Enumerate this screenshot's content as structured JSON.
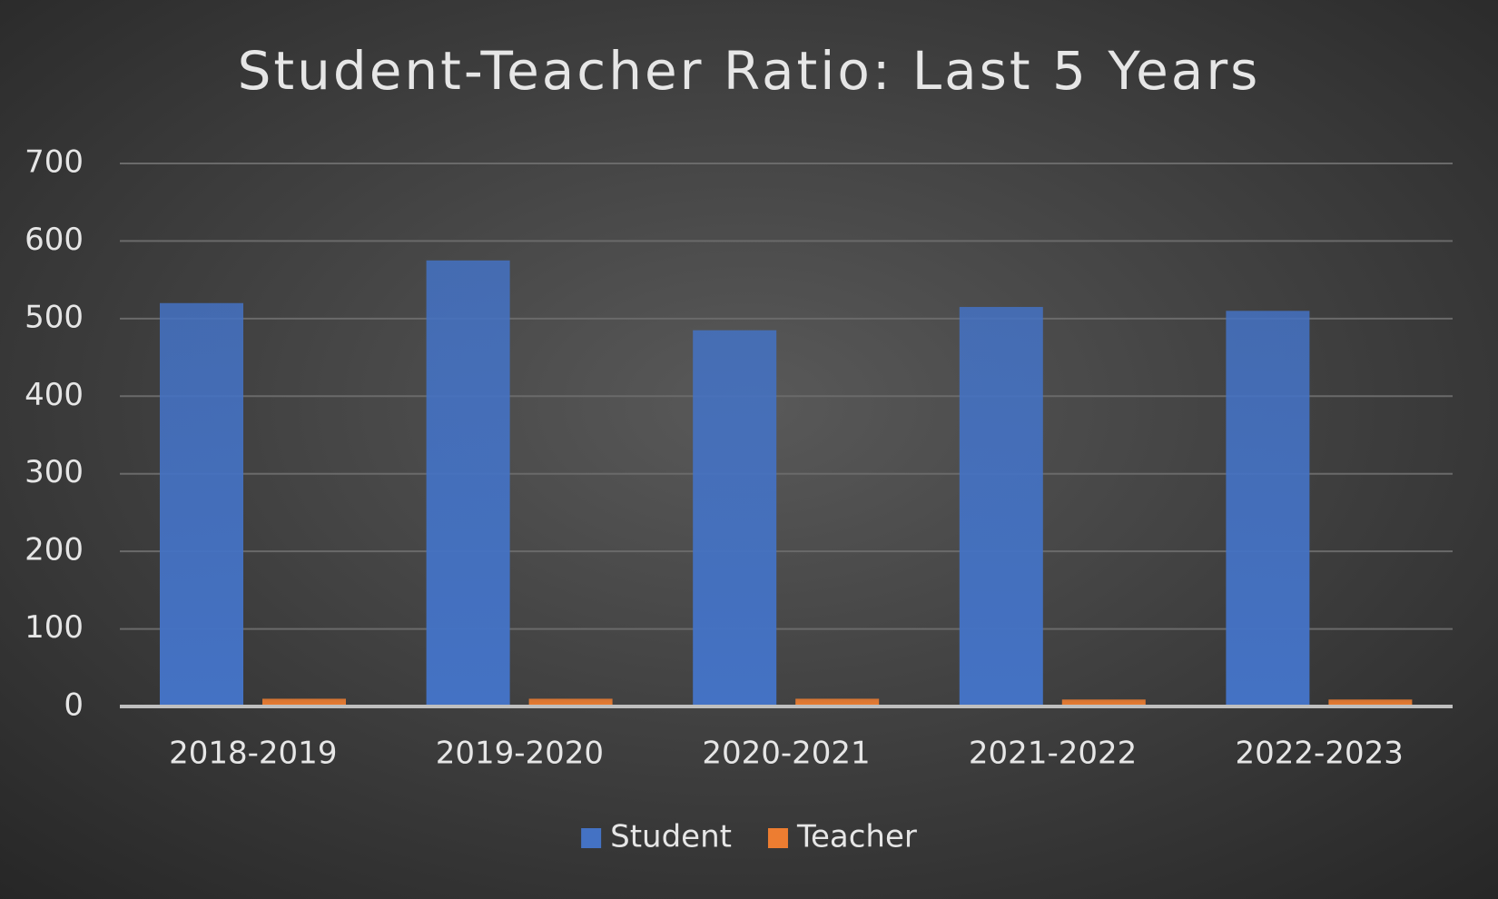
{
  "chart_data": {
    "type": "bar",
    "title": "Student-Teacher Ratio: Last 5 Years",
    "categories": [
      "2018-2019",
      "2019-2020",
      "2020-2021",
      "2021-2022",
      "2022-2023"
    ],
    "series": [
      {
        "name": "Student",
        "color": "#4472c4",
        "values": [
          520,
          575,
          485,
          515,
          510
        ]
      },
      {
        "name": "Teacher",
        "color": "#ed7d31",
        "values": [
          10,
          10,
          10,
          9,
          9
        ]
      }
    ],
    "ylim": [
      0,
      700
    ],
    "yticks": [
      0,
      100,
      200,
      300,
      400,
      500,
      600,
      700
    ],
    "grid": true,
    "legend": "bottom"
  }
}
